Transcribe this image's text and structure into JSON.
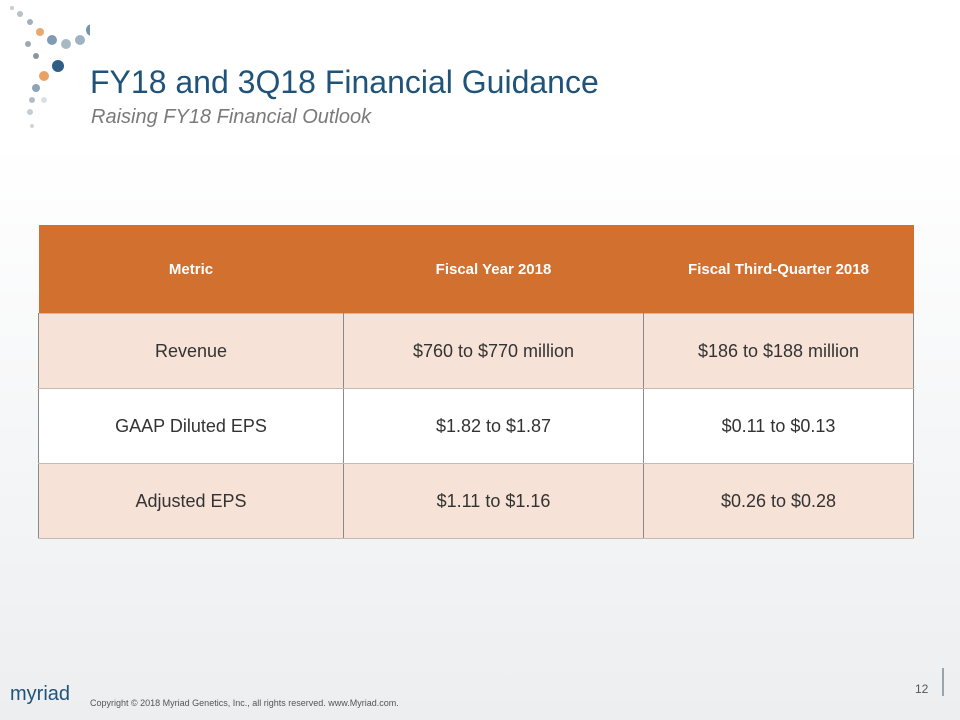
{
  "header": {
    "title": "FY18 and 3Q18 Financial Guidance",
    "subtitle": "Raising FY18 Financial Outlook"
  },
  "table": {
    "columns": [
      "Metric",
      "Fiscal Year 2018",
      "Fiscal Third-Quarter 2018"
    ],
    "rows": [
      [
        "Revenue",
        "$760 to $770 million",
        "$186 to $188 million"
      ],
      [
        "GAAP  Diluted EPS",
        "$1.82 to $1.87",
        "$0.11 to $0.13"
      ],
      [
        "Adjusted  EPS",
        "$1.11 to $1.16",
        "$0.26 to $0.28"
      ]
    ]
  },
  "footer": {
    "logo": "myriad",
    "copyright": "Copyright © 2018  Myriad Genetics, Inc., all rights reserved.  www.Myriad.com.",
    "page": "12"
  }
}
